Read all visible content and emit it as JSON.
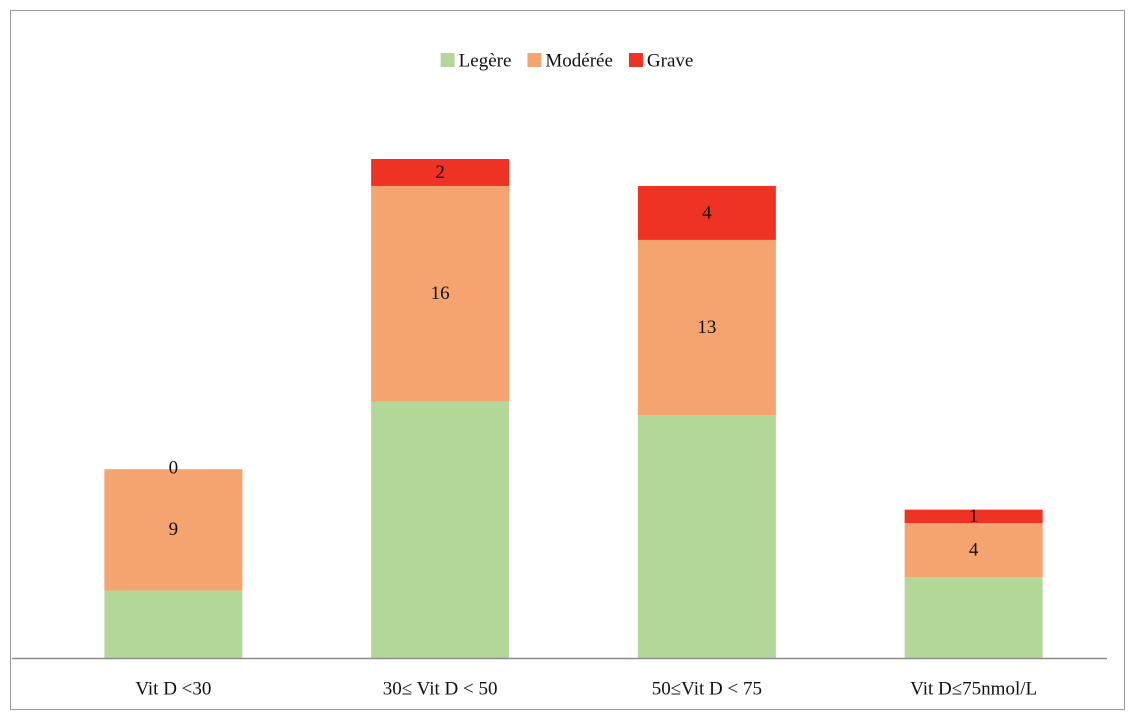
{
  "chart_data": {
    "type": "stacked_bar",
    "categories": [
      "Vit D <30",
      "30≤ Vit D < 50",
      "50≤Vit D < 75",
      "Vit D≤75nmol/L"
    ],
    "series": [
      {
        "name": "Legère",
        "color": "#b3d798",
        "values": [
          5,
          19,
          18,
          6
        ],
        "labels": false
      },
      {
        "name": "Modérée",
        "color": "#f6a46f",
        "values": [
          9,
          16,
          13,
          4
        ],
        "labels": true
      },
      {
        "name": "Grave",
        "color": "#ee3224",
        "values": [
          0,
          2,
          4,
          1
        ],
        "labels": true
      }
    ],
    "legend": "top"
  }
}
